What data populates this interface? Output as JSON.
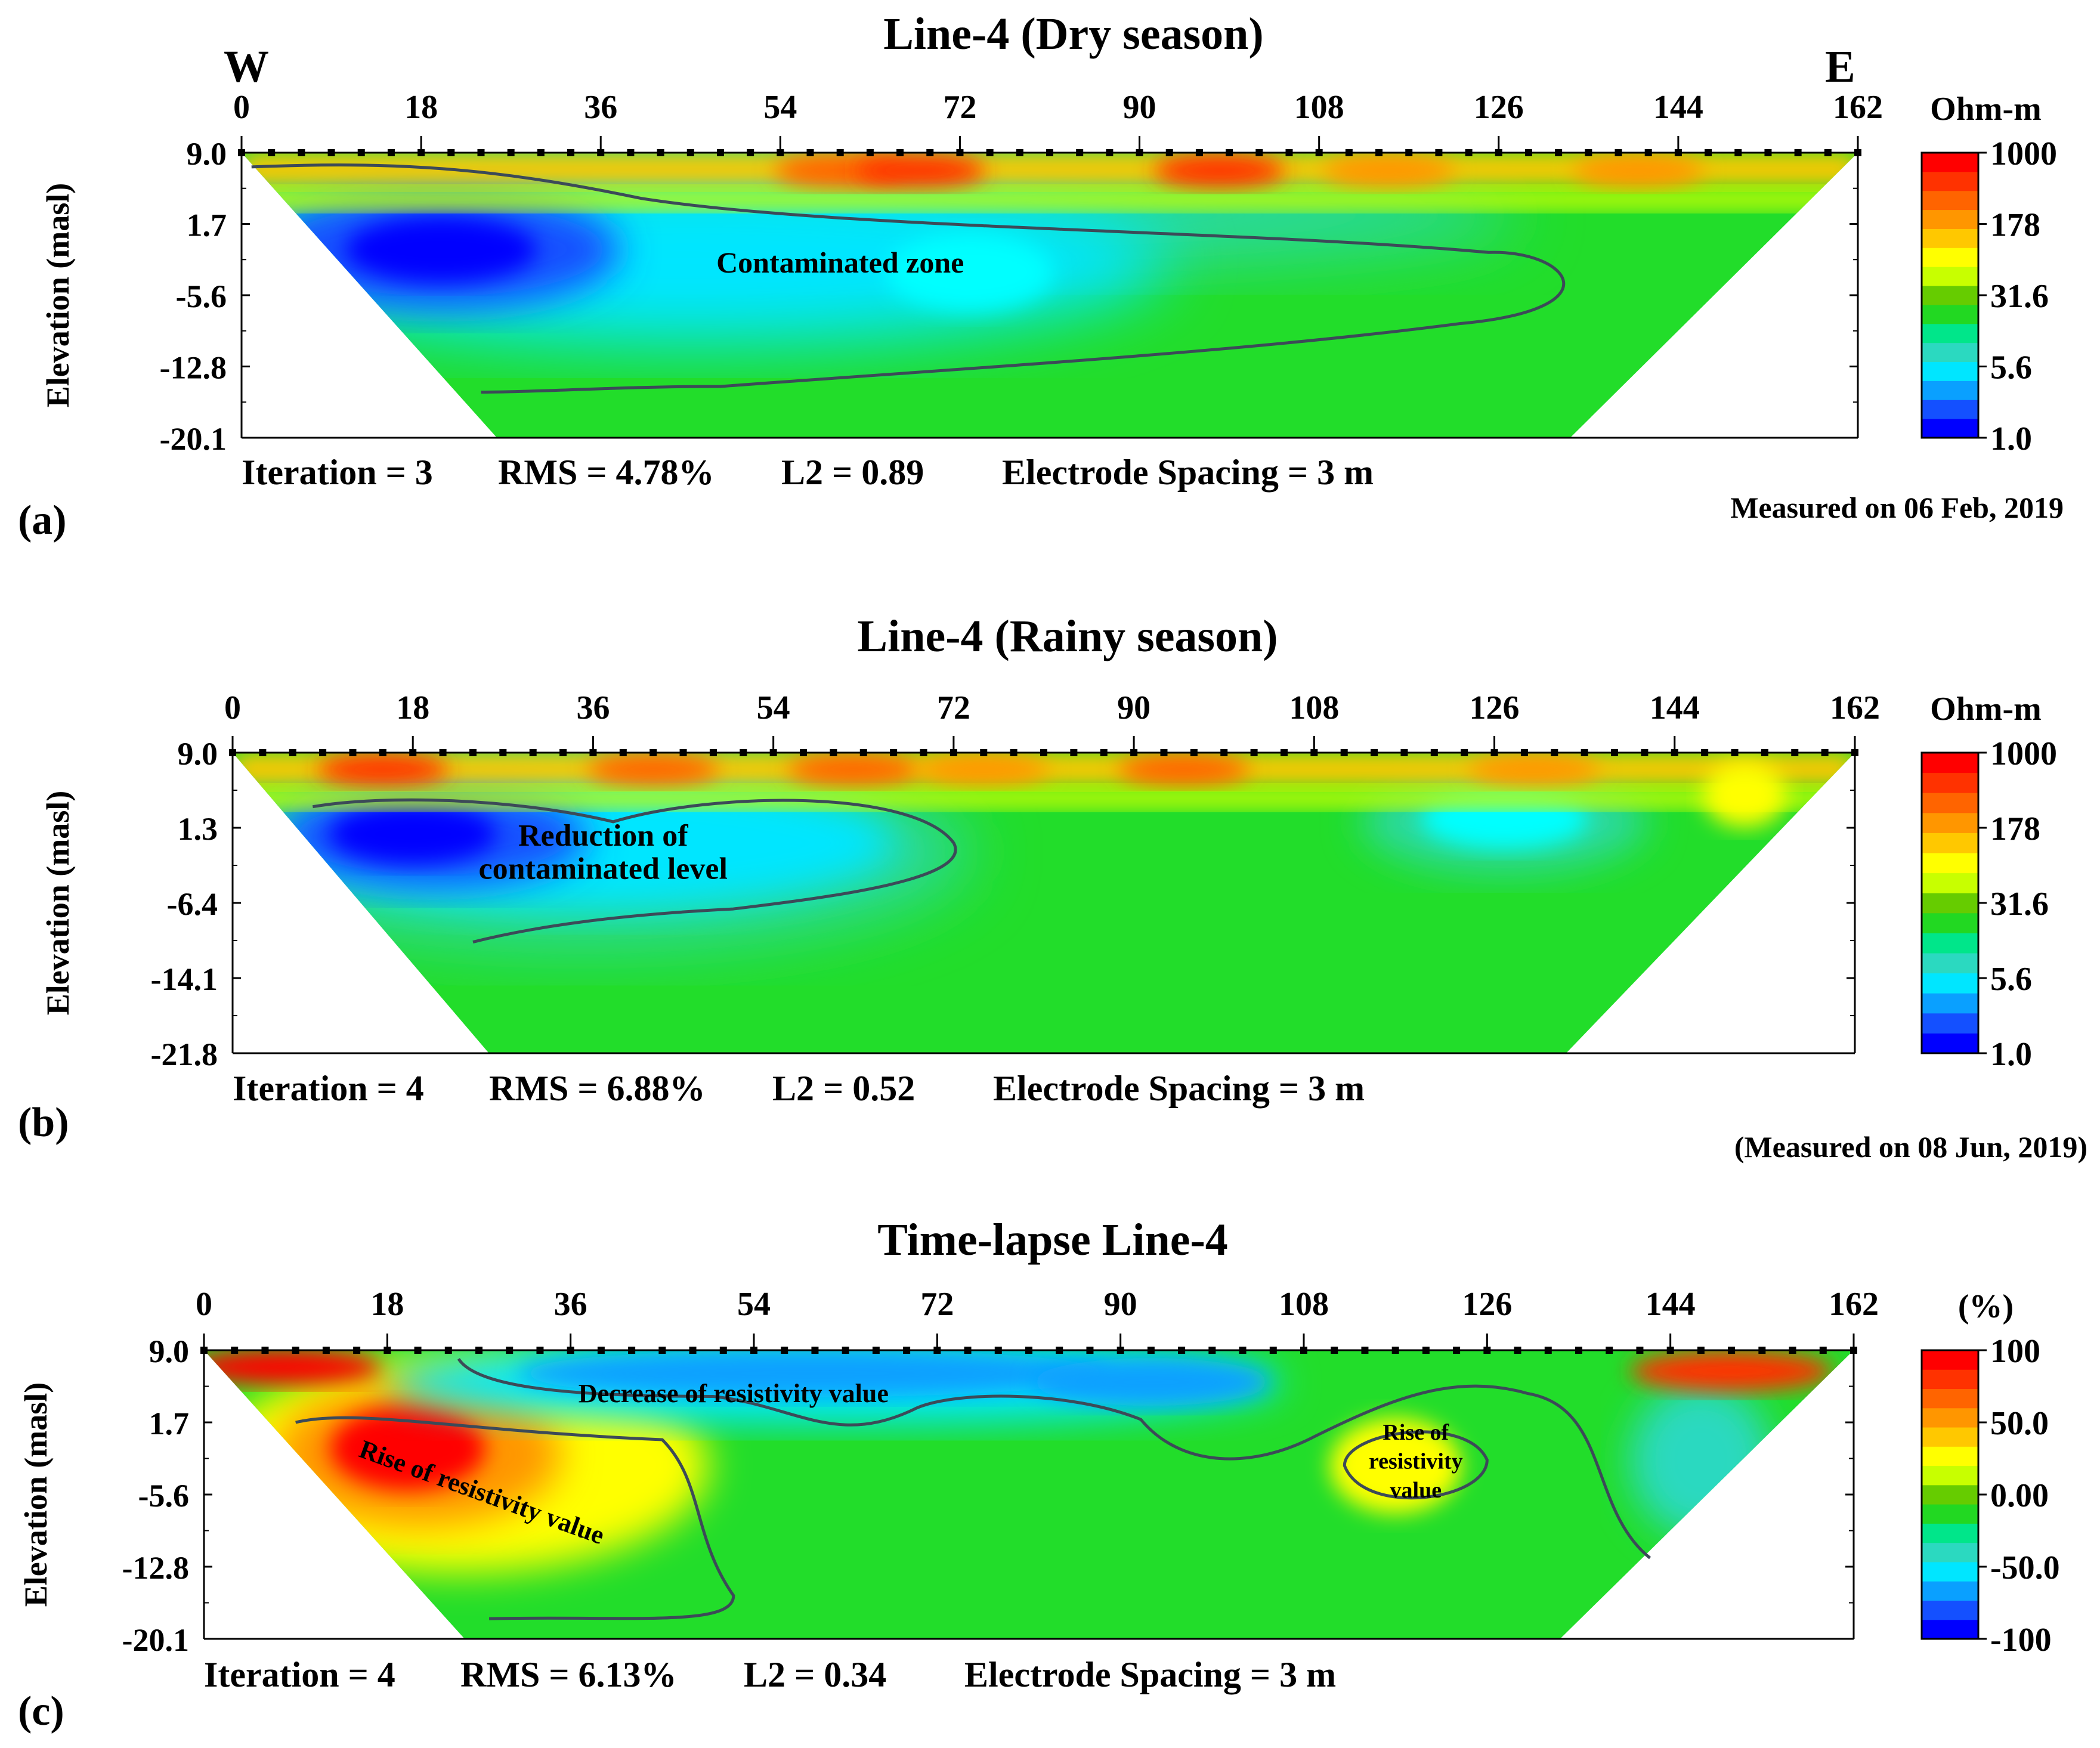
{
  "figure": {
    "panels": [
      {
        "panel_label": "(a)",
        "title": "Line-4 (Dry season)",
        "west_label": "W",
        "east_label": "E",
        "x_ticks": [
          "0",
          "18",
          "36",
          "54",
          "72",
          "90",
          "108",
          "126",
          "144",
          "162"
        ],
        "y_label": "Elevation (masl)",
        "y_ticks": [
          "9.0",
          "1.7",
          "-5.6",
          "-12.8",
          "-20.1"
        ],
        "stats": {
          "iteration": "Iteration = 3",
          "rms": "RMS = 4.78%",
          "l2": "L2 = 0.89",
          "spacing": "Electrode Spacing = 3 m"
        },
        "date_note": "Measured on 06 Feb, 2019",
        "colorbar": {
          "unit": "Ohm-m",
          "ticks": [
            "1000",
            "178",
            "31.6",
            "5.6",
            "1.0"
          ]
        },
        "annotations": [
          "Contaminated zone"
        ]
      },
      {
        "panel_label": "(b)",
        "title": "Line-4 (Rainy season)",
        "x_ticks": [
          "0",
          "18",
          "36",
          "54",
          "72",
          "90",
          "108",
          "126",
          "144",
          "162"
        ],
        "y_label": "Elevation (masl)",
        "y_ticks": [
          "9.0",
          "1.3",
          "-6.4",
          "-14.1",
          "-21.8"
        ],
        "stats": {
          "iteration": "Iteration = 4",
          "rms": "RMS = 6.88%",
          "l2": "L2 = 0.52",
          "spacing": "Electrode Spacing = 3 m"
        },
        "date_note": "(Measured on 08 Jun, 2019)",
        "colorbar": {
          "unit": "Ohm-m",
          "ticks": [
            "1000",
            "178",
            "31.6",
            "5.6",
            "1.0"
          ]
        },
        "annotations": [
          "Reduction of",
          "contaminated level"
        ]
      },
      {
        "panel_label": "(c)",
        "title": "Time-lapse Line-4",
        "x_ticks": [
          "0",
          "18",
          "36",
          "54",
          "72",
          "90",
          "108",
          "126",
          "144",
          "162"
        ],
        "y_label": "Elevation (masl)",
        "y_ticks": [
          "9.0",
          "1.7",
          "-5.6",
          "-12.8",
          "-20.1"
        ],
        "stats": {
          "iteration": "Iteration = 4",
          "rms": "RMS = 6.13%",
          "l2": "L2 = 0.34",
          "spacing": "Electrode Spacing = 3 m"
        },
        "colorbar": {
          "unit": "(%)",
          "ticks": [
            "100",
            "50.0",
            "0.00",
            "-50.0",
            "-100"
          ]
        },
        "annotations": [
          "Decrease of resistivity value",
          "Rise of resistivity value",
          "Rise of",
          "resistivity",
          "value"
        ]
      }
    ]
  },
  "chart_data": [
    {
      "type": "heatmap",
      "title": "Line-4 (Dry season)",
      "xlabel": "",
      "ylabel": "Elevation (masl)",
      "x_ticks": [
        0,
        18,
        36,
        54,
        72,
        90,
        108,
        126,
        144,
        162
      ],
      "y_ticks": [
        9.0,
        1.7,
        -5.6,
        -12.8,
        -20.1
      ],
      "xlim": [
        0,
        162
      ],
      "ylim": [
        -20.1,
        9.0
      ],
      "colorbar": {
        "unit": "Ohm-m",
        "ticks": [
          1000,
          178,
          31.6,
          5.6,
          1.0
        ],
        "scale": "log"
      },
      "electrode_spacing_m": 3,
      "stats": {
        "iteration": 3,
        "rms_percent": 4.78,
        "l2": 0.89
      },
      "measured": "06 Feb, 2019"
    },
    {
      "type": "heatmap",
      "title": "Line-4 (Rainy season)",
      "xlabel": "",
      "ylabel": "Elevation (masl)",
      "x_ticks": [
        0,
        18,
        36,
        54,
        72,
        90,
        108,
        126,
        144,
        162
      ],
      "y_ticks": [
        9.0,
        1.3,
        -6.4,
        -14.1,
        -21.8
      ],
      "xlim": [
        0,
        162
      ],
      "ylim": [
        -21.8,
        9.0
      ],
      "colorbar": {
        "unit": "Ohm-m",
        "ticks": [
          1000,
          178,
          31.6,
          5.6,
          1.0
        ],
        "scale": "log"
      },
      "electrode_spacing_m": 3,
      "stats": {
        "iteration": 4,
        "rms_percent": 6.88,
        "l2": 0.52
      },
      "measured": "08 Jun, 2019"
    },
    {
      "type": "heatmap",
      "title": "Time-lapse Line-4",
      "xlabel": "",
      "ylabel": "Elevation (masl)",
      "x_ticks": [
        0,
        18,
        36,
        54,
        72,
        90,
        108,
        126,
        144,
        162
      ],
      "y_ticks": [
        9.0,
        1.7,
        -5.6,
        -12.8,
        -20.1
      ],
      "xlim": [
        0,
        162
      ],
      "ylim": [
        -20.1,
        9.0
      ],
      "colorbar": {
        "unit": "%",
        "ticks": [
          100,
          50.0,
          0.0,
          -50.0,
          -100
        ],
        "scale": "linear"
      },
      "electrode_spacing_m": 3,
      "stats": {
        "iteration": 4,
        "rms_percent": 6.13,
        "l2": 0.34
      }
    }
  ],
  "colors": {
    "resistivity_scale": [
      "#0000ff",
      "#1450ff",
      "#0aa0ff",
      "#00e6ff",
      "#2bd9c0",
      "#00e68a",
      "#22d822",
      "#66cc00",
      "#c8ff00",
      "#ffff00",
      "#ffc800",
      "#ff9600",
      "#ff6400",
      "#ff3200",
      "#ff0000"
    ],
    "percent_scale": [
      "#0000ff",
      "#1450ff",
      "#0aa0ff",
      "#00e6ff",
      "#2bd9c0",
      "#00e68a",
      "#22d822",
      "#66cc00",
      "#c8ff00",
      "#ffff00",
      "#ffc800",
      "#ff9600",
      "#ff6400",
      "#ff3200",
      "#ff0000"
    ],
    "contour_line": "#3c4a58",
    "electrode": "#000000"
  }
}
